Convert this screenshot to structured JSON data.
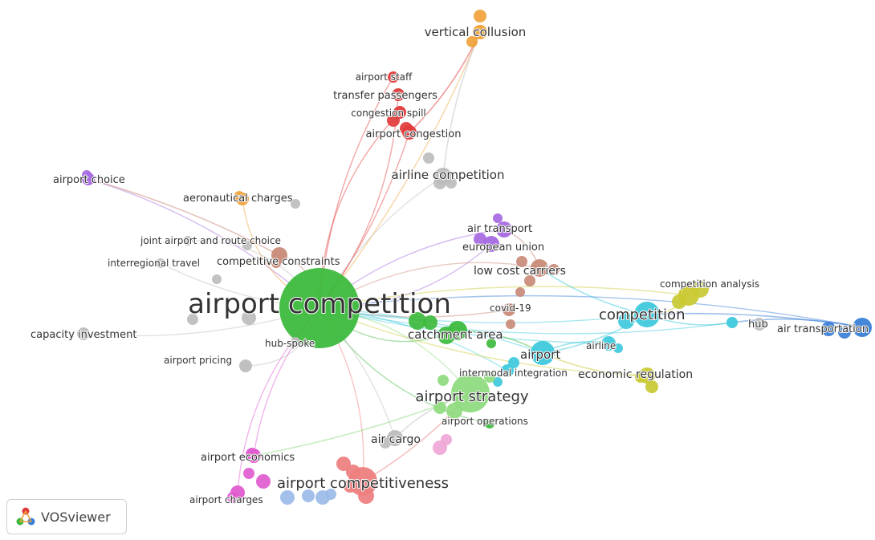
{
  "app": {
    "name": "VOSviewer"
  },
  "colors": {
    "green": "#3dba3d",
    "lightgreen": "#8fdb7f",
    "grey": "#bdbdbd",
    "red": "#e23b3b",
    "orange": "#f0a23a",
    "purple": "#a569e0",
    "brown": "#c98a78",
    "cyan": "#3ec9dc",
    "yellow": "#c9c933",
    "blue": "#3a7fd6",
    "pink": "#e05bd0",
    "lightblue": "#9bbbe8",
    "salmon": "#ee7f7f",
    "lightpink": "#f0a6d6"
  },
  "network": {
    "clusters": [
      "green",
      "grey",
      "red",
      "orange",
      "purple",
      "brown",
      "cyan",
      "yellow",
      "blue",
      "pink",
      "lightblue",
      "salmon"
    ],
    "nodes": [
      {
        "id": "airport competition",
        "label": "airport competition",
        "cluster": "green",
        "weight": 10
      },
      {
        "id": "vertical collusion",
        "label": "vertical collusion",
        "cluster": "orange",
        "weight": 2
      },
      {
        "id": "airport staff",
        "label": "airport staff",
        "cluster": "red",
        "weight": 1
      },
      {
        "id": "transfer passengers",
        "label": "transfer passengers",
        "cluster": "red",
        "weight": 1.3
      },
      {
        "id": "congestion spill",
        "label": "congestion spill",
        "cluster": "red",
        "weight": 1.2
      },
      {
        "id": "airport congestion",
        "label": "airport congestion",
        "cluster": "red",
        "weight": 1.3
      },
      {
        "id": "airline competition",
        "label": "airline competition",
        "cluster": "grey",
        "weight": 2
      },
      {
        "id": "airport choice",
        "label": "airport choice",
        "cluster": "purple",
        "weight": 1.5
      },
      {
        "id": "aeronautical charges",
        "label": "aeronautical charges",
        "cluster": "orange",
        "weight": 1.3
      },
      {
        "id": "joint airport and route choice",
        "label": "joint airport and route choice",
        "cluster": "grey",
        "weight": 1
      },
      {
        "id": "interregional travel",
        "label": "interregional travel",
        "cluster": "grey",
        "weight": 1
      },
      {
        "id": "competitive constraints",
        "label": "competitive constraints",
        "cluster": "brown",
        "weight": 1.6
      },
      {
        "id": "air transport",
        "label": "air transport",
        "cluster": "purple",
        "weight": 1.8
      },
      {
        "id": "european union",
        "label": "european union",
        "cluster": "purple",
        "weight": 1.6
      },
      {
        "id": "low cost carriers",
        "label": "low cost carriers",
        "cluster": "brown",
        "weight": 2
      },
      {
        "id": "covid-19",
        "label": "covid-19",
        "cluster": "brown",
        "weight": 1.2
      },
      {
        "id": "capacity investment",
        "label": "capacity investment",
        "cluster": "grey",
        "weight": 1.2
      },
      {
        "id": "hub-spoke",
        "label": "hub-spoke",
        "cluster": "grey",
        "weight": 1
      },
      {
        "id": "airport pricing",
        "label": "airport pricing",
        "cluster": "grey",
        "weight": 1.2
      },
      {
        "id": "catchment area",
        "label": "catchment area",
        "cluster": "green",
        "weight": 2.2
      },
      {
        "id": "airport",
        "label": "airport",
        "cluster": "cyan",
        "weight": 2.2
      },
      {
        "id": "competition",
        "label": "competition",
        "cluster": "cyan",
        "weight": 2.8
      },
      {
        "id": "competition analysis",
        "label": "competition analysis",
        "cluster": "yellow",
        "weight": 2
      },
      {
        "id": "hub",
        "label": "hub",
        "cluster": "cyan",
        "weight": 1.2
      },
      {
        "id": "air transportation",
        "label": "air transportation",
        "cluster": "blue",
        "weight": 1.8
      },
      {
        "id": "airline",
        "label": "airline",
        "cluster": "cyan",
        "weight": 1.3
      },
      {
        "id": "intermodal integration",
        "label": "intermodal integration",
        "cluster": "cyan",
        "weight": 1.2
      },
      {
        "id": "economic regulation",
        "label": "economic regulation",
        "cluster": "yellow",
        "weight": 1.4
      },
      {
        "id": "airport strategy",
        "label": "airport strategy",
        "cluster": "lightgreen",
        "weight": 3.2
      },
      {
        "id": "airport operations",
        "label": "airport operations",
        "cluster": "green",
        "weight": 1
      },
      {
        "id": "air cargo",
        "label": "air cargo",
        "cluster": "grey",
        "weight": 1.6
      },
      {
        "id": "airport economics",
        "label": "airport economics",
        "cluster": "pink",
        "weight": 1.4
      },
      {
        "id": "airport competitiveness",
        "label": "airport competitiveness",
        "cluster": "salmon",
        "weight": 3
      },
      {
        "id": "airport charges",
        "label": "airport charges",
        "cluster": "pink",
        "weight": 1.4
      }
    ]
  },
  "badge": {
    "label": "VOSviewer"
  }
}
